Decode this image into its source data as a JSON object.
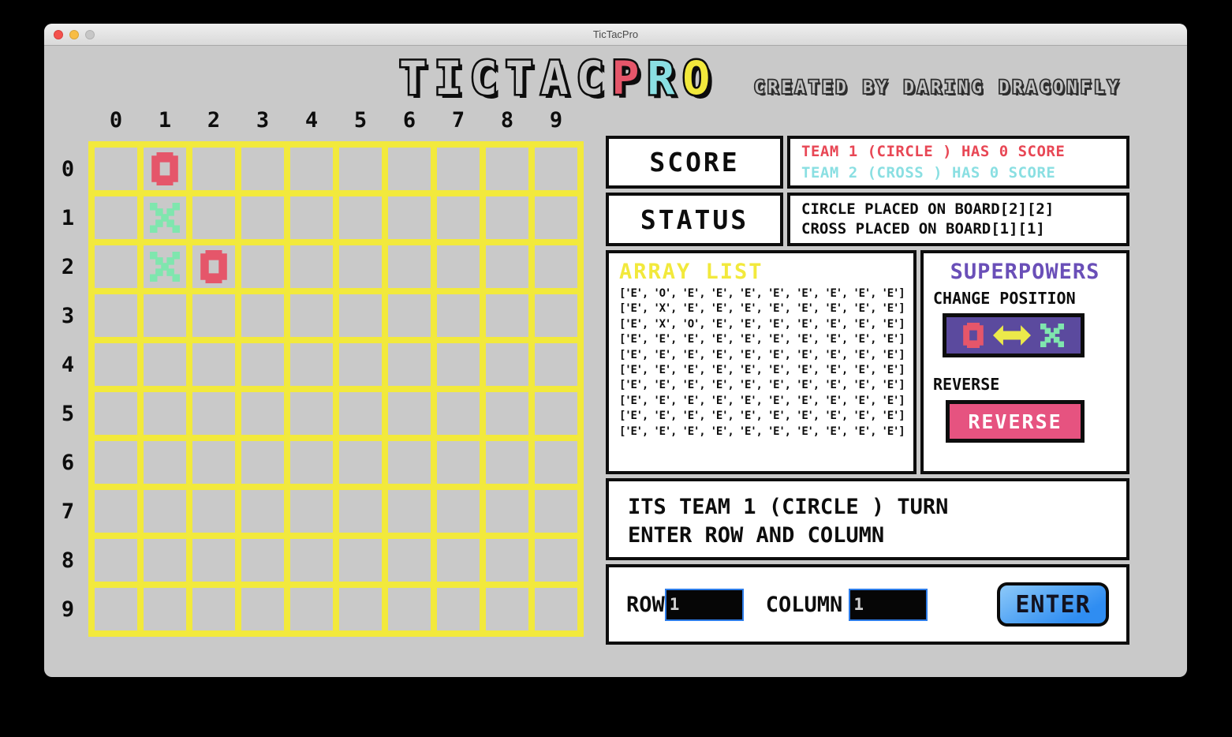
{
  "window": {
    "title": "TicTacPro"
  },
  "header": {
    "logo_tictac": "TICTAC",
    "logo_p": "P",
    "logo_r": "R",
    "logo_o": "O",
    "credits": "CREATED BY DARING DRAGONFLY"
  },
  "board": {
    "column_labels": [
      "0",
      "1",
      "2",
      "3",
      "4",
      "5",
      "6",
      "7",
      "8",
      "9"
    ],
    "row_labels": [
      "0",
      "1",
      "2",
      "3",
      "4",
      "5",
      "6",
      "7",
      "8",
      "9"
    ],
    "cells": [
      [
        "E",
        "O",
        "E",
        "E",
        "E",
        "E",
        "E",
        "E",
        "E",
        "E"
      ],
      [
        "E",
        "X",
        "E",
        "E",
        "E",
        "E",
        "E",
        "E",
        "E",
        "E"
      ],
      [
        "E",
        "X",
        "O",
        "E",
        "E",
        "E",
        "E",
        "E",
        "E",
        "E"
      ],
      [
        "E",
        "E",
        "E",
        "E",
        "E",
        "E",
        "E",
        "E",
        "E",
        "E"
      ],
      [
        "E",
        "E",
        "E",
        "E",
        "E",
        "E",
        "E",
        "E",
        "E",
        "E"
      ],
      [
        "E",
        "E",
        "E",
        "E",
        "E",
        "E",
        "E",
        "E",
        "E",
        "E"
      ],
      [
        "E",
        "E",
        "E",
        "E",
        "E",
        "E",
        "E",
        "E",
        "E",
        "E"
      ],
      [
        "E",
        "E",
        "E",
        "E",
        "E",
        "E",
        "E",
        "E",
        "E",
        "E"
      ],
      [
        "E",
        "E",
        "E",
        "E",
        "E",
        "E",
        "E",
        "E",
        "E",
        "E"
      ],
      [
        "E",
        "E",
        "E",
        "E",
        "E",
        "E",
        "E",
        "E",
        "E",
        "E"
      ]
    ]
  },
  "score_panel": {
    "label": "SCORE",
    "team1": "TEAM 1 (CIRCLE ) HAS 0 SCORE",
    "team2": "TEAM 2 (CROSS ) HAS 0 SCORE"
  },
  "status_panel": {
    "label": "STATUS",
    "line1": "CIRCLE PLACED ON BOARD[2][2]",
    "line2": "CROSS PLACED ON BOARD[1][1]"
  },
  "array_panel": {
    "title": "ARRAY LIST",
    "rows": [
      "['E', 'O', 'E', 'E', 'E', 'E', 'E', 'E', 'E', 'E']",
      "['E', 'X', 'E', 'E', 'E', 'E', 'E', 'E', 'E', 'E']",
      "['E', 'X', 'O', 'E', 'E', 'E', 'E', 'E', 'E', 'E']",
      "['E', 'E', 'E', 'E', 'E', 'E', 'E', 'E', 'E', 'E']",
      "['E', 'E', 'E', 'E', 'E', 'E', 'E', 'E', 'E', 'E']",
      "['E', 'E', 'E', 'E', 'E', 'E', 'E', 'E', 'E', 'E']",
      "['E', 'E', 'E', 'E', 'E', 'E', 'E', 'E', 'E', 'E']",
      "['E', 'E', 'E', 'E', 'E', 'E', 'E', 'E', 'E', 'E']",
      "['E', 'E', 'E', 'E', 'E', 'E', 'E', 'E', 'E', 'E']",
      "['E', 'E', 'E', 'E', 'E', 'E', 'E', 'E', 'E', 'E']"
    ]
  },
  "superpowers": {
    "title": "SUPERPOWERS",
    "change_position_label": "CHANGE POSITION",
    "reverse_label": "REVERSE",
    "reverse_button": "REVERSE"
  },
  "turn_panel": {
    "line1": "ITS TEAM 1 (CIRCLE ) TURN",
    "line2": "ENTER ROW AND COLUMN"
  },
  "input_panel": {
    "row_label": "ROW",
    "row_value": "1",
    "column_label": "COLUMN",
    "column_value": "1",
    "enter_button": "ENTER"
  },
  "colors": {
    "team1": "#e84755",
    "team2": "#8adfe2",
    "o_red": "#e5566a",
    "x_green": "#7fe6ae",
    "grid_yellow": "#f2e93c",
    "array_title_yellow": "#f2e93c",
    "superpowers_purple": "#6a4fb8",
    "power_bg_purple": "#5b4a9e",
    "arrow_yellow": "#ece94a",
    "reverse_pink": "#e65380",
    "enter_blue": "#2f8df2",
    "input_border_blue": "#2d7ce8"
  }
}
